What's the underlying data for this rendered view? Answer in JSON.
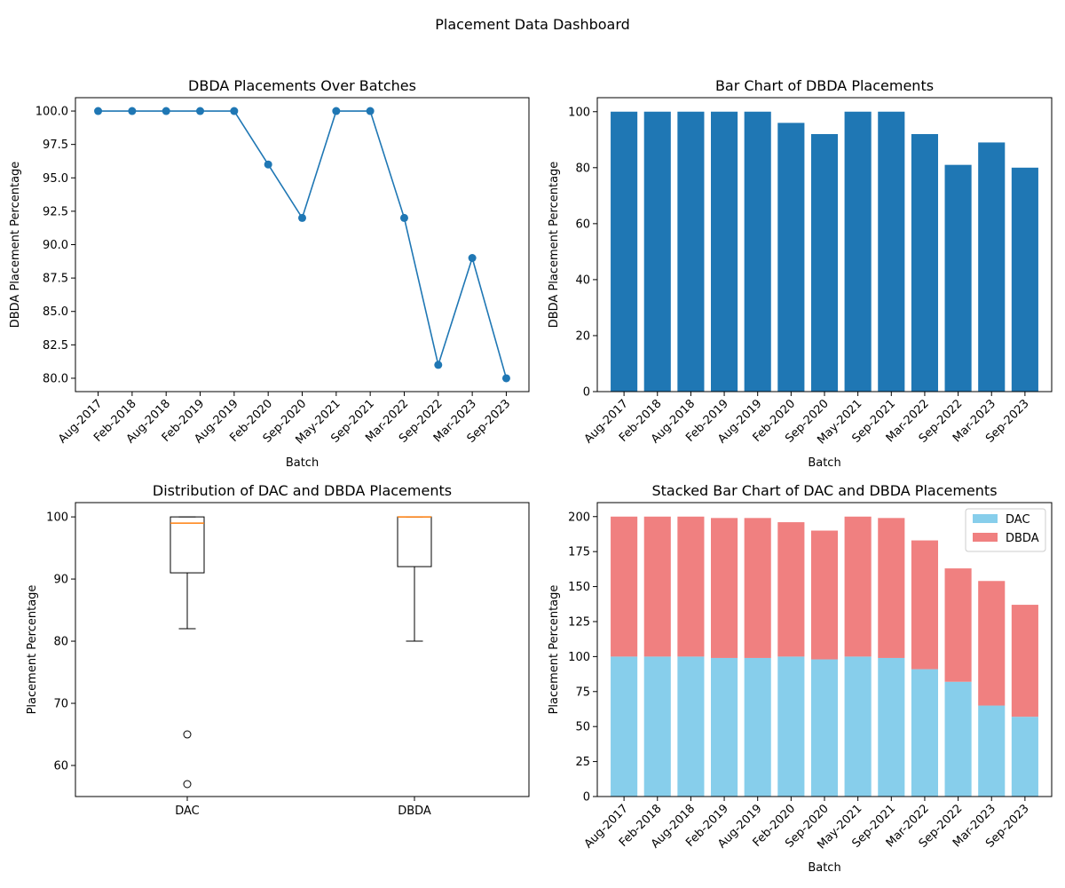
{
  "dashboard": {
    "title": "Placement Data Dashboard"
  },
  "chart_data": [
    {
      "type": "line",
      "title": "DBDA Placements Over Batches",
      "xlabel": "Batch",
      "ylabel": "DBDA Placement Percentage",
      "categories": [
        "Aug-2017",
        "Feb-2018",
        "Aug-2018",
        "Feb-2019",
        "Aug-2019",
        "Feb-2020",
        "Sep-2020",
        "May-2021",
        "Sep-2021",
        "Mar-2022",
        "Sep-2022",
        "Mar-2023",
        "Sep-2023"
      ],
      "values": [
        100,
        100,
        100,
        100,
        100,
        96,
        92,
        100,
        100,
        92,
        81,
        89,
        80
      ],
      "ylim": [
        79,
        101
      ],
      "yticks": [
        80.0,
        82.5,
        85.0,
        87.5,
        90.0,
        92.5,
        95.0,
        97.5,
        100.0
      ],
      "color": "#1f77b4",
      "marker": "circle",
      "grid": false
    },
    {
      "type": "bar",
      "title": "Bar Chart of DBDA Placements",
      "xlabel": "Batch",
      "ylabel": "DBDA Placement Percentage",
      "categories": [
        "Aug-2017",
        "Feb-2018",
        "Aug-2018",
        "Feb-2019",
        "Aug-2019",
        "Feb-2020",
        "Sep-2020",
        "May-2021",
        "Sep-2021",
        "Mar-2022",
        "Sep-2022",
        "Mar-2023",
        "Sep-2023"
      ],
      "values": [
        100,
        100,
        100,
        100,
        100,
        96,
        92,
        100,
        100,
        92,
        81,
        89,
        80
      ],
      "ylim": [
        0,
        105
      ],
      "yticks": [
        0,
        20,
        40,
        60,
        80,
        100
      ],
      "color": "#1f77b4",
      "grid": false
    },
    {
      "type": "box",
      "title": "Distribution of DAC and DBDA Placements",
      "xlabel": "",
      "ylabel": "Placement Percentage",
      "categories": [
        "DAC",
        "DBDA"
      ],
      "boxes": [
        {
          "name": "DAC",
          "whisker_low": 82,
          "q1": 91,
          "median": 99,
          "q3": 100,
          "whisker_high": 100,
          "outliers": [
            65,
            57
          ]
        },
        {
          "name": "DBDA",
          "whisker_low": 80,
          "q1": 92,
          "median": 100,
          "q3": 100,
          "whisker_high": 100,
          "outliers": []
        }
      ],
      "ylim": [
        55,
        102.3
      ],
      "yticks": [
        60,
        70,
        80,
        90,
        100
      ],
      "median_color": "#ff7f0e",
      "grid": false
    },
    {
      "type": "stacked-bar",
      "title": "Stacked Bar Chart of DAC and DBDA Placements",
      "xlabel": "Batch",
      "ylabel": "Placement Percentage",
      "categories": [
        "Aug-2017",
        "Feb-2018",
        "Aug-2018",
        "Feb-2019",
        "Aug-2019",
        "Feb-2020",
        "Sep-2020",
        "May-2021",
        "Sep-2021",
        "Mar-2022",
        "Sep-2022",
        "Mar-2023",
        "Sep-2023"
      ],
      "series": [
        {
          "name": "DAC",
          "color": "#87ceeb",
          "values": [
            100,
            100,
            100,
            99,
            99,
            100,
            98,
            100,
            99,
            91,
            82,
            65,
            57
          ]
        },
        {
          "name": "DBDA",
          "color": "#f08080",
          "values": [
            100,
            100,
            100,
            100,
            100,
            96,
            92,
            100,
            100,
            92,
            81,
            89,
            80
          ]
        }
      ],
      "ylim": [
        0,
        210
      ],
      "yticks": [
        0,
        25,
        50,
        75,
        100,
        125,
        150,
        175,
        200
      ],
      "legend": "top-right",
      "grid": false
    }
  ]
}
